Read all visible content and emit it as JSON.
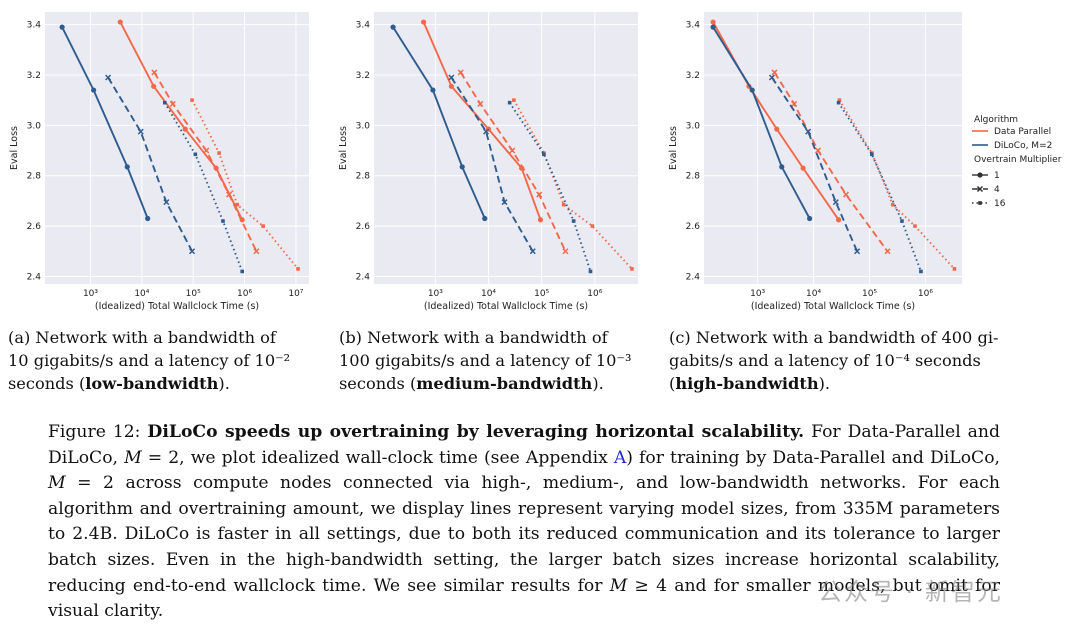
{
  "colors": {
    "data_parallel": "#f2694a",
    "diloco": "#2e5c8e",
    "panel_bg": "#eaeaf2",
    "grid": "#ffffff",
    "link": "#1f2fd6"
  },
  "chart_data": [
    {
      "panel": "a",
      "type": "line",
      "xscale": "log",
      "xlabel": "(Idealized) Total Wallclock Time (s)",
      "ylabel": "Eval Loss",
      "xlim": [
        130,
        18000000
      ],
      "ylim": [
        2.37,
        3.45
      ],
      "xticks": [
        {
          "value": 1000,
          "label": "10³"
        },
        {
          "value": 10000,
          "label": "10⁴"
        },
        {
          "value": 100000,
          "label": "10⁵"
        },
        {
          "value": 1000000,
          "label": "10⁶"
        },
        {
          "value": 10000000,
          "label": "10⁷"
        }
      ],
      "yticks": [
        2.4,
        2.6,
        2.8,
        3.0,
        3.2,
        3.4
      ],
      "grid": true,
      "series": [
        {
          "algorithm": "Data Parallel",
          "multiplier": "1",
          "x": [
            3800,
            17000,
            70000,
            280000,
            900000
          ],
          "y": [
            3.41,
            3.155,
            2.985,
            2.83,
            2.625
          ]
        },
        {
          "algorithm": "Data Parallel",
          "multiplier": "4",
          "x": [
            17500,
            40000,
            180000,
            500000,
            1700000
          ],
          "y": [
            3.21,
            3.085,
            2.9,
            2.725,
            2.5
          ]
        },
        {
          "algorithm": "Data Parallel",
          "multiplier": "16",
          "x": [
            95000,
            320000,
            720000,
            2300000,
            11000000
          ],
          "y": [
            3.1,
            2.89,
            2.685,
            2.6,
            2.43
          ]
        },
        {
          "algorithm": "DiLoCo, M=2",
          "multiplier": "1",
          "x": [
            280,
            1150,
            5200,
            13000
          ],
          "y": [
            3.39,
            3.14,
            2.835,
            2.63
          ]
        },
        {
          "algorithm": "DiLoCo, M=2",
          "multiplier": "4",
          "x": [
            2200,
            9500,
            30000,
            95000
          ],
          "y": [
            3.19,
            2.975,
            2.695,
            2.5
          ]
        },
        {
          "algorithm": "DiLoCo, M=2",
          "multiplier": "16",
          "x": [
            28000,
            110000,
            380000,
            900000
          ],
          "y": [
            3.09,
            2.885,
            2.62,
            2.42
          ]
        }
      ]
    },
    {
      "panel": "b",
      "type": "line",
      "xscale": "log",
      "xlabel": "(Idealized) Total Wallclock Time (s)",
      "ylabel": "Eval Loss",
      "xlim": [
        70,
        6500000
      ],
      "ylim": [
        2.37,
        3.45
      ],
      "xticks": [
        {
          "value": 1000,
          "label": "10³"
        },
        {
          "value": 10000,
          "label": "10⁴"
        },
        {
          "value": 100000,
          "label": "10⁵"
        },
        {
          "value": 1000000,
          "label": "10⁶"
        }
      ],
      "yticks": [
        2.4,
        2.6,
        2.8,
        3.0,
        3.2,
        3.4
      ],
      "grid": true,
      "series": [
        {
          "algorithm": "Data Parallel",
          "multiplier": "1",
          "x": [
            600,
            2000,
            10000,
            42000,
            95000
          ],
          "y": [
            3.41,
            3.155,
            2.985,
            2.83,
            2.625
          ]
        },
        {
          "algorithm": "Data Parallel",
          "multiplier": "4",
          "x": [
            3000,
            7000,
            28000,
            90000,
            280000
          ],
          "y": [
            3.21,
            3.085,
            2.9,
            2.725,
            2.5
          ]
        },
        {
          "algorithm": "Data Parallel",
          "multiplier": "16",
          "x": [
            30000,
            110000,
            260000,
            900000,
            5000000
          ],
          "y": [
            3.1,
            2.89,
            2.685,
            2.6,
            2.43
          ]
        },
        {
          "algorithm": "DiLoCo, M=2",
          "multiplier": "1",
          "x": [
            160,
            900,
            3200,
            8500
          ],
          "y": [
            3.39,
            3.14,
            2.835,
            2.63
          ]
        },
        {
          "algorithm": "DiLoCo, M=2",
          "multiplier": "4",
          "x": [
            2000,
            9000,
            20000,
            68000
          ],
          "y": [
            3.19,
            2.975,
            2.695,
            2.5
          ]
        },
        {
          "algorithm": "DiLoCo, M=2",
          "multiplier": "16",
          "x": [
            25000,
            110000,
            400000,
            830000
          ],
          "y": [
            3.09,
            2.885,
            2.62,
            2.42
          ]
        }
      ]
    },
    {
      "panel": "c",
      "type": "line",
      "xscale": "log",
      "xlabel": "(Idealized) Total Wallclock Time (s)",
      "ylabel": "Eval Loss",
      "xlim": [
        110,
        4500000
      ],
      "ylim": [
        2.37,
        3.45
      ],
      "xticks": [
        {
          "value": 1000,
          "label": "10³"
        },
        {
          "value": 10000,
          "label": "10⁴"
        },
        {
          "value": 100000,
          "label": "10⁵"
        },
        {
          "value": 1000000,
          "label": "10⁶"
        }
      ],
      "yticks": [
        2.4,
        2.6,
        2.8,
        3.0,
        3.2,
        3.4
      ],
      "grid": true,
      "series": [
        {
          "algorithm": "Data Parallel",
          "multiplier": "1",
          "x": [
            160,
            700,
            2200,
            6500,
            28000
          ],
          "y": [
            3.41,
            3.155,
            2.985,
            2.83,
            2.625
          ]
        },
        {
          "algorithm": "Data Parallel",
          "multiplier": "4",
          "x": [
            2000,
            4500,
            12000,
            38000,
            210000
          ],
          "y": [
            3.21,
            3.085,
            2.9,
            2.725,
            2.5
          ]
        },
        {
          "algorithm": "Data Parallel",
          "multiplier": "16",
          "x": [
            29000,
            110000,
            260000,
            650000,
            3300000
          ],
          "y": [
            3.1,
            2.89,
            2.685,
            2.6,
            2.43
          ]
        },
        {
          "algorithm": "DiLoCo, M=2",
          "multiplier": "1",
          "x": [
            160,
            800,
            2700,
            8500
          ],
          "y": [
            3.39,
            3.14,
            2.835,
            2.63
          ]
        },
        {
          "algorithm": "DiLoCo, M=2",
          "multiplier": "4",
          "x": [
            1800,
            8000,
            25000,
            60000
          ],
          "y": [
            3.19,
            2.975,
            2.695,
            2.5
          ]
        },
        {
          "algorithm": "DiLoCo, M=2",
          "multiplier": "16",
          "x": [
            28000,
            110000,
            380000,
            830000
          ],
          "y": [
            3.09,
            2.885,
            2.62,
            2.42
          ]
        }
      ]
    }
  ],
  "legend": {
    "algorithm_title": "Algorithm",
    "algorithms": [
      "Data Parallel",
      "DiLoCo, M=2"
    ],
    "multiplier_title": "Overtrain Multiplier",
    "multipliers": [
      "1",
      "4",
      "16"
    ]
  },
  "captions": {
    "a": {
      "line1": "(a) Network with a bandwidth of",
      "line2_pre": "10 gigabits/s and a latency of ",
      "exp": "10⁻²",
      "line3_pre": "seconds (",
      "bold": "low-bandwidth",
      "line3_post": ")."
    },
    "b": {
      "line1": "(b) Network with a bandwidth of",
      "line2_pre": "100 gigabits/s and a latency of ",
      "exp": "10⁻³",
      "line3_pre": "seconds (",
      "bold": "medium-bandwidth",
      "line3_post": ")."
    },
    "c": {
      "line1": "(c) Network with a bandwidth of 400 gi-",
      "line2_pre": "gabits/s and a latency of ",
      "exp": "10⁻⁴",
      "line2_post": " seconds",
      "line3_pre": "(",
      "bold": "high-bandwidth",
      "line3_post": ")."
    }
  },
  "figure_caption": {
    "label": "Figure 12: ",
    "bold": "DiLoCo speeds up overtraining by leveraging horizontal scalability.",
    "t1": " For Data-Parallel and DiLoCo, ",
    "m1": "M",
    "t2": " = 2, we plot idealized wall-clock time (see Appendix ",
    "link": "A",
    "t3": ") for training by Data-Parallel and DiLoCo, ",
    "m2": "M",
    "t4": " = 2 across compute nodes connected via high-, medium-, and low-bandwidth networks. For each algorithm and overtraining amount, we display lines represent varying model sizes, from 335M parameters to 2.4B. DiLoCo is faster in all settings, due to both its reduced communication and its tolerance to larger batch sizes. Even in the high-bandwidth setting, the larger batch sizes increase horizontal scalability, reducing end-to-end wallclock time. We see similar results for ",
    "m3": "M",
    "t5": " ≥ 4 and for smaller models, but omit for visual clarity."
  },
  "watermark": "公众号 · 新智元"
}
